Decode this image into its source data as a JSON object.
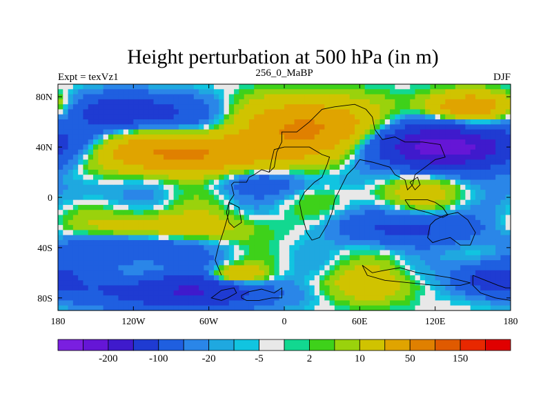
{
  "chart_data": {
    "type": "heatmap",
    "title": "Height perturbation at 500 hPa (in m)",
    "left_label": "Expt = texVz1",
    "center_label": "256_0_MaBP",
    "right_label": "DJF",
    "xlim": [
      -180,
      180
    ],
    "ylim": [
      -90,
      90
    ],
    "x_ticks": [
      {
        "value": -180,
        "label": "180"
      },
      {
        "value": -120,
        "label": "120W"
      },
      {
        "value": -60,
        "label": "60W"
      },
      {
        "value": 0,
        "label": "0"
      },
      {
        "value": 60,
        "label": "60E"
      },
      {
        "value": 120,
        "label": "120E"
      },
      {
        "value": 180,
        "label": "180"
      }
    ],
    "y_ticks": [
      {
        "value": 80,
        "label": "80N"
      },
      {
        "value": 40,
        "label": "40N"
      },
      {
        "value": 0,
        "label": "0"
      },
      {
        "value": -40,
        "label": "40S"
      },
      {
        "value": -80,
        "label": "80S"
      }
    ],
    "colorbar": {
      "colors": [
        "#7a1fe0",
        "#6516d6",
        "#3f1acc",
        "#1f3bd2",
        "#1f5fe0",
        "#2a86e8",
        "#1fa8e0",
        "#11c4e0",
        "#e8e8e8",
        "#12d890",
        "#3ed11a",
        "#9ad20c",
        "#d0c300",
        "#e0a400",
        "#e08000",
        "#e05a00",
        "#e82800",
        "#e00000"
      ],
      "labels": [
        {
          "after_bin": 1,
          "text": "-200"
        },
        {
          "after_bin": 3,
          "text": "-100"
        },
        {
          "after_bin": 5,
          "text": "-20"
        },
        {
          "after_bin": 7,
          "text": "-5"
        },
        {
          "after_bin": 9,
          "text": "2"
        },
        {
          "after_bin": 11,
          "text": "10"
        },
        {
          "after_bin": 13,
          "text": "50"
        },
        {
          "after_bin": 15,
          "text": "150"
        }
      ]
    },
    "field_centers": [
      {
        "lon": -120,
        "lat": 68,
        "value": -90,
        "slon": 32,
        "slat": 10
      },
      {
        "lon": -80,
        "lat": 35,
        "value": 110,
        "slon": 50,
        "slat": 11
      },
      {
        "lon": 20,
        "lat": 55,
        "value": 120,
        "slon": 30,
        "slat": 15
      },
      {
        "lon": 130,
        "lat": 40,
        "value": -180,
        "slon": 40,
        "slat": 12
      },
      {
        "lon": 145,
        "lat": 72,
        "value": 80,
        "slon": 26,
        "slat": 8
      },
      {
        "lon": -10,
        "lat": 12,
        "value": -30,
        "slon": 40,
        "slat": 8
      },
      {
        "lon": -160,
        "lat": 5,
        "value": -20,
        "slon": 20,
        "slat": 10
      },
      {
        "lon": 100,
        "lat": 5,
        "value": 25,
        "slon": 35,
        "slat": 10
      },
      {
        "lon": 100,
        "lat": -25,
        "value": -60,
        "slon": 40,
        "slat": 9
      },
      {
        "lon": -120,
        "lat": -40,
        "value": -60,
        "slon": 40,
        "slat": 9
      },
      {
        "lon": -100,
        "lat": -25,
        "value": 45,
        "slon": 50,
        "slat": 9
      },
      {
        "lon": -80,
        "lat": -75,
        "value": -100,
        "slon": 50,
        "slat": 10
      },
      {
        "lon": 165,
        "lat": -65,
        "value": -90,
        "slon": 20,
        "slat": 9
      },
      {
        "lon": 60,
        "lat": -70,
        "value": 30,
        "slon": 40,
        "slat": 10
      },
      {
        "lon": -40,
        "lat": -62,
        "value": 70,
        "slon": 15,
        "slat": 5
      }
    ],
    "coastlines": [
      [
        [
          -34,
          -80
        ],
        [
          -34,
          -78
        ],
        [
          -28,
          -75
        ],
        [
          -18,
          -73
        ],
        [
          -8,
          -76
        ],
        [
          -2,
          -72
        ],
        [
          -2,
          -80
        ],
        [
          -10,
          -80
        ],
        [
          -20,
          -82
        ],
        [
          -30,
          -82
        ],
        [
          -34,
          -80
        ]
      ],
      [
        [
          -45,
          -80
        ],
        [
          -38,
          -76
        ],
        [
          -40,
          -72
        ],
        [
          -50,
          -74
        ],
        [
          -58,
          -80
        ],
        [
          -50,
          -82
        ],
        [
          -45,
          -80
        ]
      ],
      [
        [
          -50,
          -62
        ],
        [
          -55,
          -50
        ],
        [
          -52,
          -38
        ],
        [
          -48,
          -26
        ],
        [
          -44,
          -12
        ],
        [
          -44,
          -4
        ],
        [
          -40,
          2
        ],
        [
          -42,
          10
        ],
        [
          -40,
          12
        ],
        [
          -30,
          12
        ],
        [
          -28,
          16
        ],
        [
          -24,
          18
        ],
        [
          -18,
          22
        ],
        [
          -12,
          20
        ],
        [
          -8,
          24
        ],
        [
          -6,
          36
        ],
        [
          -2,
          44
        ],
        [
          -2,
          52
        ],
        [
          10,
          52
        ],
        [
          20,
          60
        ],
        [
          30,
          70
        ],
        [
          40,
          72
        ],
        [
          56,
          74
        ],
        [
          65,
          70
        ],
        [
          70,
          64
        ],
        [
          72,
          54
        ],
        [
          78,
          46
        ],
        [
          88,
          48
        ],
        [
          96,
          44
        ],
        [
          110,
          44
        ],
        [
          124,
          42
        ],
        [
          128,
          32
        ],
        [
          120,
          30
        ],
        [
          112,
          24
        ],
        [
          104,
          18
        ],
        [
          102,
          10
        ],
        [
          98,
          6
        ],
        [
          96,
          14
        ],
        [
          88,
          18
        ],
        [
          84,
          24
        ],
        [
          70,
          28
        ],
        [
          60,
          30
        ],
        [
          56,
          24
        ],
        [
          50,
          18
        ],
        [
          46,
          10
        ],
        [
          40,
          -2
        ],
        [
          38,
          -12
        ],
        [
          34,
          -22
        ],
        [
          28,
          -32
        ],
        [
          22,
          -34
        ],
        [
          18,
          -28
        ],
        [
          14,
          -14
        ],
        [
          12,
          -4
        ],
        [
          16,
          4
        ],
        [
          20,
          8
        ],
        [
          24,
          12
        ],
        [
          30,
          16
        ],
        [
          34,
          26
        ],
        [
          36,
          32
        ],
        [
          30,
          34
        ],
        [
          20,
          40
        ],
        [
          10,
          40
        ],
        [
          0,
          40
        ],
        [
          -8,
          38
        ],
        [
          -10,
          30
        ],
        [
          -12,
          20
        ]
      ],
      [
        [
          -44,
          -4
        ],
        [
          -36,
          -8
        ],
        [
          -34,
          -20
        ],
        [
          -40,
          -24
        ],
        [
          -44,
          -20
        ],
        [
          -46,
          -12
        ],
        [
          -44,
          -4
        ]
      ],
      [
        [
          96,
          -2
        ],
        [
          100,
          -8
        ],
        [
          106,
          -10
        ],
        [
          114,
          -12
        ],
        [
          120,
          -14
        ],
        [
          126,
          -16
        ],
        [
          130,
          -14
        ],
        [
          126,
          -8
        ],
        [
          120,
          -4
        ],
        [
          114,
          -2
        ],
        [
          106,
          -2
        ],
        [
          96,
          -2
        ]
      ],
      [
        [
          116,
          -22
        ],
        [
          114,
          -32
        ],
        [
          118,
          -36
        ],
        [
          124,
          -34
        ],
        [
          132,
          -32
        ],
        [
          140,
          -38
        ],
        [
          148,
          -38
        ],
        [
          152,
          -28
        ],
        [
          146,
          -18
        ],
        [
          138,
          -12
        ],
        [
          128,
          -14
        ],
        [
          120,
          -18
        ],
        [
          116,
          -22
        ]
      ],
      [
        [
          100,
          12
        ],
        [
          104,
          6
        ],
        [
          108,
          10
        ],
        [
          106,
          16
        ],
        [
          100,
          12
        ]
      ],
      [
        [
          150,
          -62
        ],
        [
          160,
          -66
        ],
        [
          170,
          -70
        ],
        [
          176,
          -72
        ],
        [
          180,
          -72
        ],
        [
          180,
          -82
        ],
        [
          168,
          -80
        ],
        [
          156,
          -76
        ],
        [
          150,
          -70
        ],
        [
          150,
          -62
        ]
      ],
      [
        [
          62,
          -54
        ],
        [
          70,
          -60
        ],
        [
          80,
          -58
        ],
        [
          92,
          -56
        ],
        [
          106,
          -60
        ],
        [
          120,
          -62
        ],
        [
          132,
          -64
        ],
        [
          140,
          -66
        ],
        [
          148,
          -68
        ],
        [
          140,
          -70
        ],
        [
          120,
          -70
        ],
        [
          100,
          -68
        ],
        [
          80,
          -66
        ],
        [
          66,
          -62
        ],
        [
          62,
          -54
        ]
      ]
    ]
  }
}
